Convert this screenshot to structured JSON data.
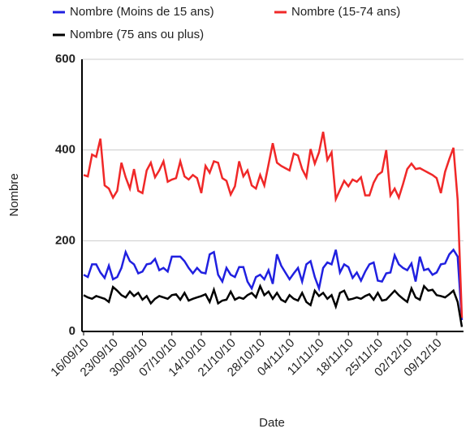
{
  "chart_data": {
    "type": "line",
    "y_label": "Nombre",
    "x_label": "Date",
    "categories": [
      "16/09/10",
      null,
      null,
      null,
      null,
      null,
      null,
      "23/09/10",
      null,
      null,
      null,
      null,
      null,
      null,
      "30/09/10",
      null,
      null,
      null,
      null,
      null,
      null,
      "07/10/10",
      null,
      null,
      null,
      null,
      null,
      null,
      "14/10/10",
      null,
      null,
      null,
      null,
      null,
      null,
      "21/10/10",
      null,
      null,
      null,
      null,
      null,
      null,
      "28/10/10",
      null,
      null,
      null,
      null,
      null,
      null,
      "04/11/10",
      null,
      null,
      null,
      null,
      null,
      null,
      "11/11/10",
      null,
      null,
      null,
      null,
      null,
      null,
      "18/11/10",
      null,
      null,
      null,
      null,
      null,
      null,
      "25/11/10",
      null,
      null,
      null,
      null,
      null,
      null,
      "02/12/10",
      null,
      null,
      null,
      null,
      null,
      null,
      "09/12/10",
      null,
      null,
      null,
      null,
      null,
      null
    ],
    "series": [
      {
        "name": "Nombre (Moins de 15 ans)",
        "color": "#2020e0",
        "values": [
          125,
          120,
          148,
          148,
          130,
          118,
          145,
          115,
          120,
          140,
          175,
          155,
          148,
          128,
          132,
          148,
          150,
          160,
          135,
          140,
          132,
          165,
          165,
          165,
          155,
          140,
          128,
          140,
          130,
          128,
          170,
          175,
          125,
          110,
          140,
          125,
          120,
          142,
          142,
          110,
          95,
          120,
          125,
          115,
          135,
          105,
          170,
          145,
          130,
          115,
          128,
          140,
          110,
          148,
          155,
          120,
          95,
          140,
          152,
          148,
          180,
          130,
          148,
          142,
          118,
          130,
          112,
          132,
          148,
          152,
          112,
          110,
          128,
          130,
          168,
          148,
          140,
          135,
          150,
          110,
          165,
          135,
          138,
          125,
          130,
          148,
          150,
          170,
          180,
          165,
          25
        ]
      },
      {
        "name": "Nombre (15-74 ans)",
        "color": "#f02828",
        "values": [
          345,
          342,
          390,
          385,
          425,
          322,
          315,
          295,
          310,
          372,
          340,
          315,
          358,
          310,
          305,
          355,
          372,
          340,
          355,
          375,
          330,
          335,
          338,
          375,
          342,
          335,
          345,
          338,
          305,
          365,
          350,
          375,
          372,
          338,
          332,
          302,
          320,
          375,
          342,
          355,
          322,
          315,
          345,
          322,
          368,
          415,
          372,
          365,
          360,
          355,
          392,
          388,
          358,
          340,
          402,
          370,
          395,
          440,
          378,
          395,
          292,
          312,
          332,
          320,
          335,
          330,
          340,
          300,
          300,
          328,
          345,
          352,
          400,
          300,
          315,
          295,
          325,
          358,
          370,
          358,
          360,
          355,
          350,
          345,
          338,
          305,
          352,
          380,
          405,
          290,
          30
        ]
      },
      {
        "name": "Nombre (75 ans ou plus)",
        "color": "#000000",
        "values": [
          80,
          75,
          72,
          78,
          75,
          72,
          65,
          98,
          90,
          80,
          75,
          88,
          78,
          85,
          70,
          78,
          62,
          72,
          78,
          75,
          72,
          80,
          82,
          70,
          85,
          68,
          72,
          75,
          78,
          82,
          65,
          92,
          62,
          68,
          70,
          88,
          70,
          75,
          72,
          80,
          85,
          75,
          100,
          80,
          88,
          72,
          85,
          70,
          65,
          80,
          72,
          68,
          85,
          65,
          58,
          90,
          78,
          85,
          72,
          80,
          55,
          85,
          90,
          70,
          72,
          75,
          72,
          78,
          82,
          70,
          85,
          68,
          70,
          80,
          90,
          80,
          72,
          65,
          95,
          75,
          70,
          100,
          90,
          92,
          80,
          78,
          75,
          82,
          90,
          65,
          10
        ]
      }
    ],
    "ylim": [
      0,
      600
    ],
    "yticks": [
      0,
      200,
      400,
      600
    ],
    "grid": true
  }
}
